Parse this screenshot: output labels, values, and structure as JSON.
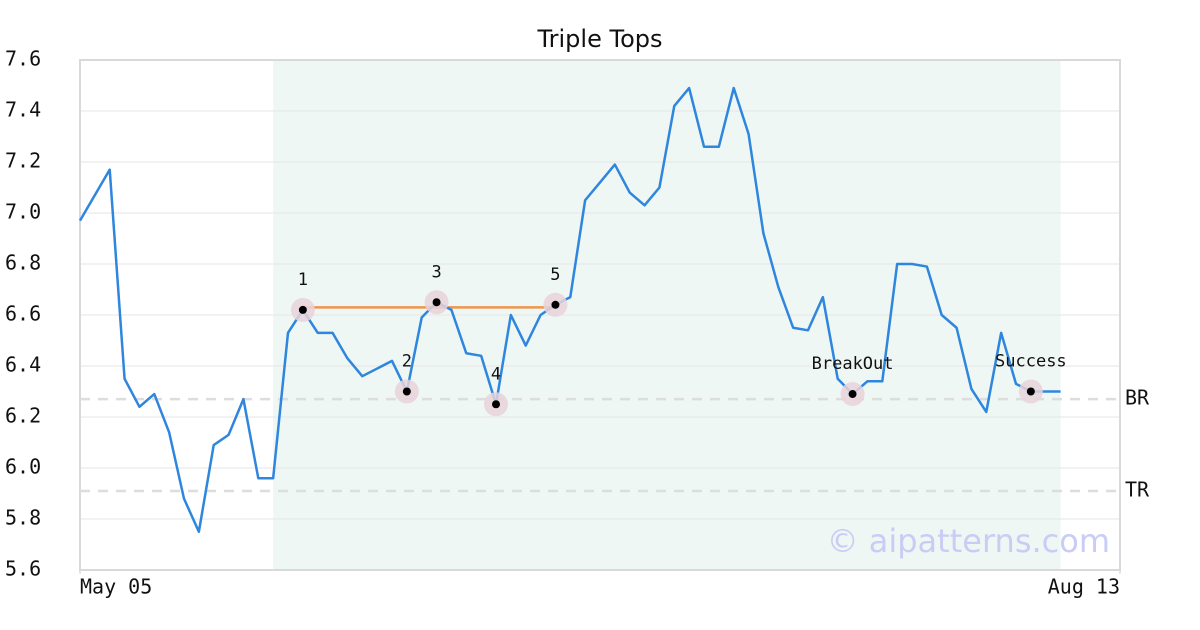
{
  "chart_data": {
    "type": "line",
    "title": "Triple Tops",
    "x": [
      0,
      2,
      3,
      4,
      5,
      6,
      7,
      8,
      9,
      10,
      11,
      12,
      13,
      14,
      15,
      16,
      17,
      18,
      19,
      20,
      21,
      22,
      23,
      24,
      25,
      26,
      27,
      28,
      29,
      30,
      31,
      32,
      33,
      34,
      35,
      36,
      37,
      38,
      39,
      40,
      41,
      42,
      43,
      44,
      45,
      46,
      47,
      48,
      49,
      50,
      51,
      52,
      53,
      54,
      55,
      56,
      57,
      58,
      59,
      60,
      61,
      62,
      63,
      64,
      65,
      66
    ],
    "values": [
      6.97,
      7.17,
      6.35,
      6.24,
      6.29,
      6.14,
      5.88,
      5.75,
      6.09,
      6.13,
      6.27,
      5.96,
      5.96,
      6.53,
      6.62,
      6.53,
      6.53,
      6.43,
      6.36,
      6.39,
      6.42,
      6.3,
      6.59,
      6.65,
      6.62,
      6.45,
      6.44,
      6.25,
      6.6,
      6.48,
      6.6,
      6.64,
      6.67,
      7.05,
      7.12,
      7.19,
      7.08,
      7.03,
      7.1,
      7.42,
      7.49,
      7.26,
      7.26,
      7.49,
      7.31,
      6.92,
      6.71,
      6.55,
      6.54,
      6.67,
      6.35,
      6.29,
      6.34,
      6.34,
      6.8,
      6.8,
      6.79,
      6.6,
      6.55,
      6.31,
      6.22,
      6.53,
      6.33,
      6.3,
      6.3,
      6.3
    ],
    "color": "#2e86de",
    "xlim": [
      0,
      70
    ],
    "xticks": [
      {
        "value": 0,
        "label": "May 05"
      },
      {
        "value": 70,
        "label": "Aug 13"
      }
    ],
    "ylim": [
      5.6,
      7.6
    ],
    "yticks": [
      5.6,
      5.8,
      {
        "value": 6,
        "label": "6.0"
      },
      6.2,
      6.4,
      6.6,
      6.8,
      {
        "value": 7,
        "label": "7.0"
      },
      7.2,
      7.4,
      7.6
    ],
    "grid": true,
    "highlight": [
      13,
      66
    ],
    "resistance": {
      "value": 6.63,
      "x": [
        15,
        32
      ],
      "color": "#f0954a"
    },
    "reference_lines": [
      {
        "label": "BR",
        "value": 6.27
      },
      {
        "label": "TR",
        "value": 5.91
      }
    ],
    "patterns": [
      {
        "label": "1",
        "x": 15,
        "y": 6.62
      },
      {
        "label": "2",
        "x": 22,
        "y": 6.3
      },
      {
        "label": "3",
        "x": 24,
        "y": 6.65
      },
      {
        "label": "4",
        "x": 28,
        "y": 6.25
      },
      {
        "label": "5",
        "x": 32,
        "y": 6.64
      },
      {
        "label": "BreakOut",
        "x": 52,
        "y": 6.29
      },
      {
        "label": "Success",
        "x": 64,
        "y": 6.3
      }
    ],
    "watermark": "© aipatterns.com"
  }
}
